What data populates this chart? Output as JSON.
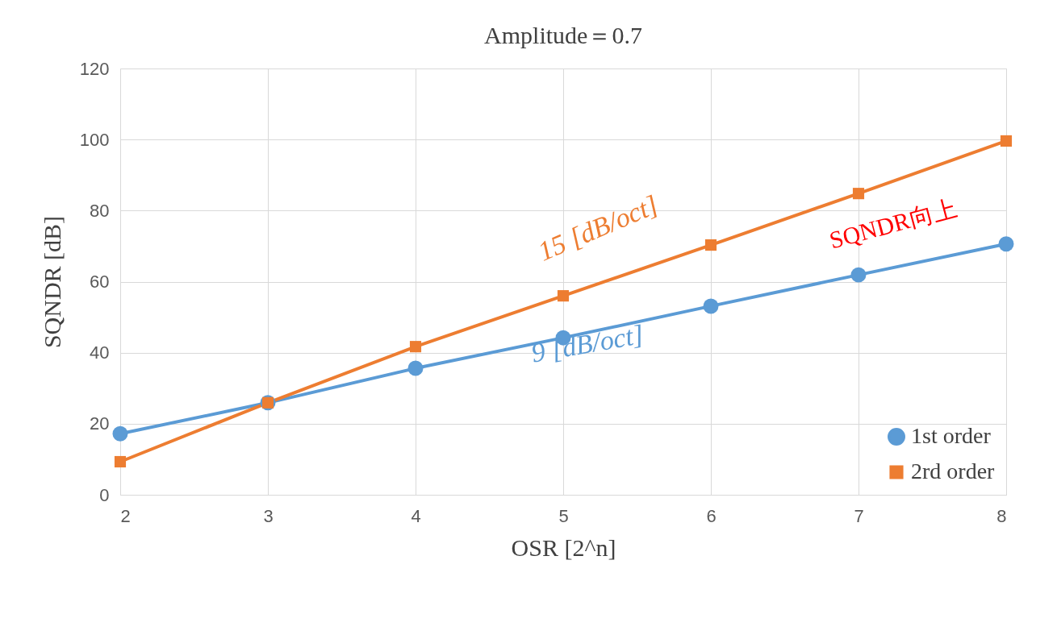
{
  "chart_data": {
    "type": "line",
    "title": "Amplitude＝0.7",
    "xlabel": "OSR [2^n]",
    "ylabel": "SQNDR [dB]",
    "x": [
      2,
      3,
      4,
      5,
      6,
      7,
      8
    ],
    "series": [
      {
        "name": "1st order",
        "color": "#5b9bd5",
        "marker": "circle",
        "values": [
          17.2,
          25.9,
          35.6,
          44.2,
          53.1,
          61.9,
          70.6
        ]
      },
      {
        "name": "2rd order",
        "color": "#ed7d31",
        "marker": "square",
        "values": [
          9.3,
          25.9,
          41.7,
          56.0,
          70.3,
          84.8,
          99.6
        ]
      }
    ],
    "xlim": [
      2,
      8
    ],
    "xticks": [
      2,
      3,
      4,
      5,
      6,
      7,
      8
    ],
    "ylim": [
      0,
      120
    ],
    "yticks": [
      0,
      20,
      40,
      60,
      80,
      100,
      120
    ],
    "grid": true,
    "legend": "bottom right",
    "line_style": "solid",
    "annotations": [
      "15 [dB/oct]",
      "9 [dB/oct]",
      "SQNDR向上"
    ]
  }
}
